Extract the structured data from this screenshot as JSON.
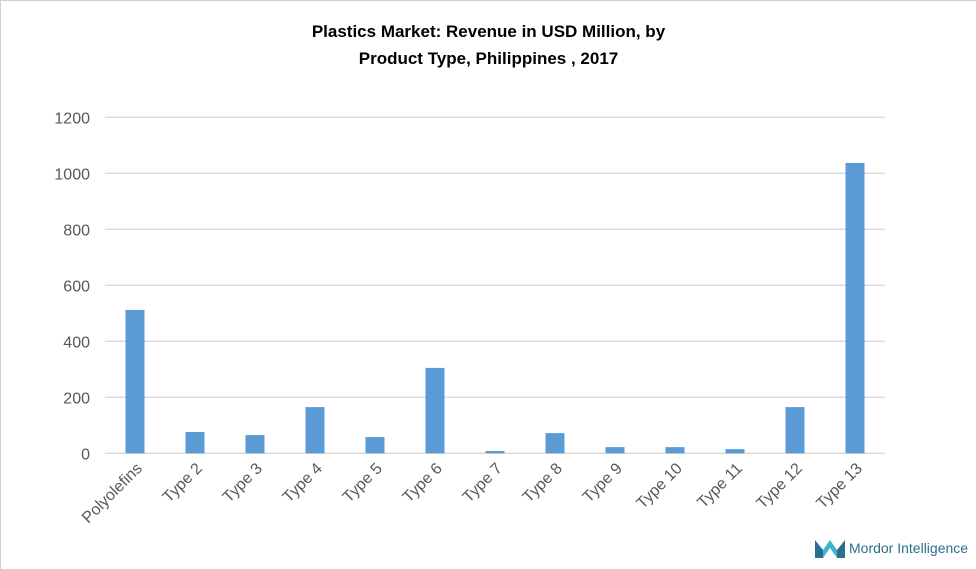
{
  "chart_data": {
    "type": "bar",
    "title_line1": "Plastics Market: Revenue in USD Million, by",
    "title_line2": "Product Type, Philippines , 2017",
    "categories": [
      "Polyolefins",
      "Type 2",
      "Type 3",
      "Type 4",
      "Type 5",
      "Type 6",
      "Type 7",
      "Type 8",
      "Type 9",
      "Type 10",
      "Type 11",
      "Type 12",
      "Type 13"
    ],
    "values": [
      512,
      76,
      65,
      165,
      58,
      305,
      8,
      72,
      22,
      22,
      15,
      165,
      1037
    ],
    "xlabel": "",
    "ylabel": "",
    "ylim": [
      0,
      1200
    ],
    "yticks": [
      0,
      200,
      400,
      600,
      800,
      1000,
      1200
    ],
    "grid": true,
    "legend": "none",
    "bar_color": "#5b9bd5",
    "grid_color": "#d9d9d9"
  },
  "logo": {
    "text": "Mordor Intelligence"
  }
}
